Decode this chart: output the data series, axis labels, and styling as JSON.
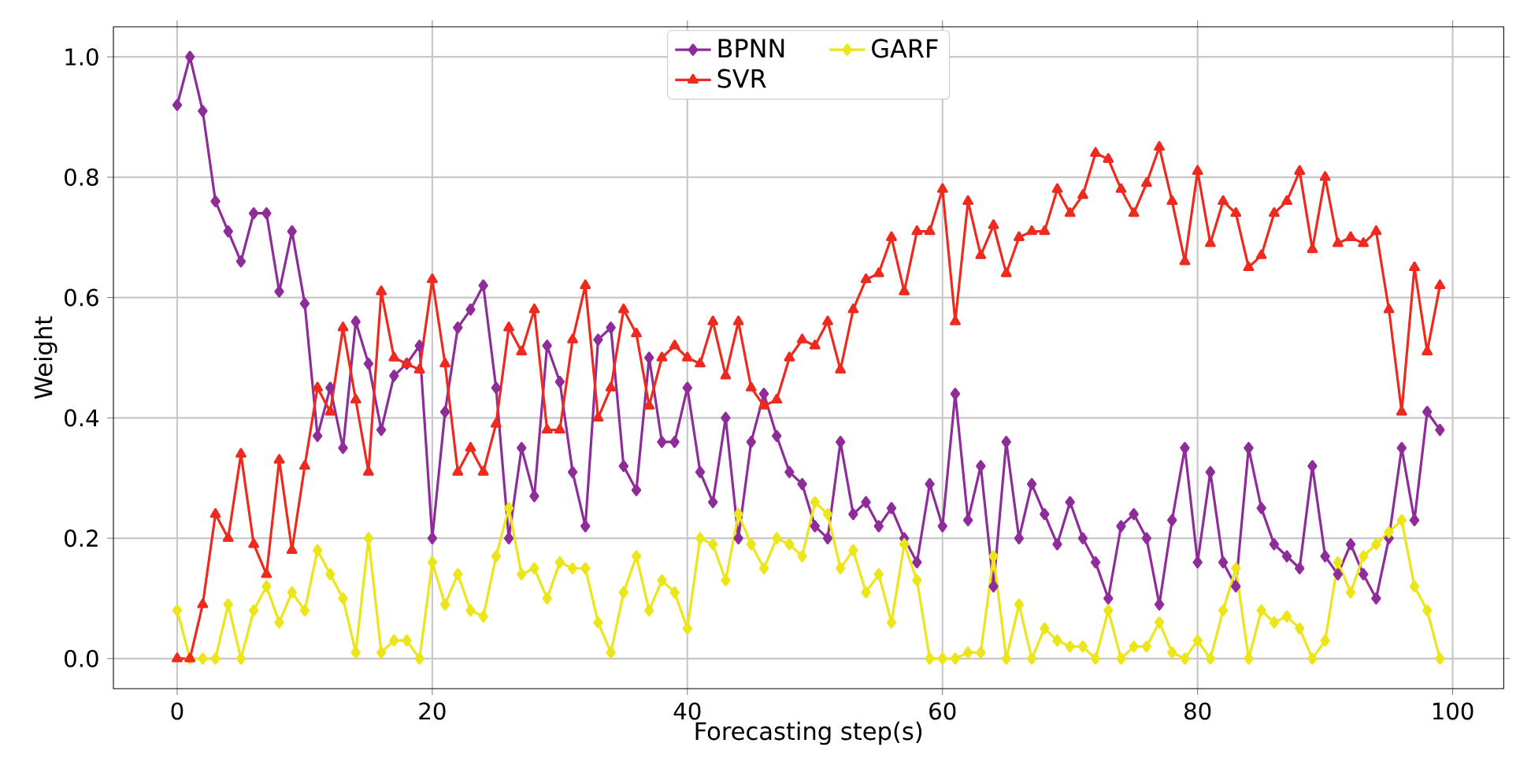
{
  "chart_data": {
    "type": "line",
    "xlabel": "Forecasting step(s)",
    "ylabel": "Weight",
    "x": [
      0,
      1,
      2,
      3,
      4,
      5,
      6,
      7,
      8,
      9,
      10,
      11,
      12,
      13,
      14,
      15,
      16,
      17,
      18,
      19,
      20,
      21,
      22,
      23,
      24,
      25,
      26,
      27,
      28,
      29,
      30,
      31,
      32,
      33,
      34,
      35,
      36,
      37,
      38,
      39,
      40,
      41,
      42,
      43,
      44,
      45,
      46,
      47,
      48,
      49,
      50,
      51,
      52,
      53,
      54,
      55,
      56,
      57,
      58,
      59,
      60,
      61,
      62,
      63,
      64,
      65,
      66,
      67,
      68,
      69,
      70,
      71,
      72,
      73,
      74,
      75,
      76,
      77,
      78,
      79,
      80,
      81,
      82,
      83,
      84,
      85,
      86,
      87,
      88,
      89,
      90,
      91,
      92,
      93,
      94,
      95,
      96,
      97,
      98,
      99
    ],
    "series": [
      {
        "name": "BPNN",
        "color": "#8e2c9a",
        "marker": "diamond",
        "values": [
          0.92,
          1.0,
          0.91,
          0.76,
          0.71,
          0.66,
          0.74,
          0.74,
          0.61,
          0.71,
          0.59,
          0.37,
          0.45,
          0.35,
          0.56,
          0.49,
          0.38,
          0.47,
          0.49,
          0.52,
          0.2,
          0.41,
          0.55,
          0.58,
          0.62,
          0.45,
          0.2,
          0.35,
          0.27,
          0.52,
          0.46,
          0.31,
          0.22,
          0.53,
          0.55,
          0.32,
          0.28,
          0.5,
          0.36,
          0.36,
          0.45,
          0.31,
          0.26,
          0.4,
          0.2,
          0.36,
          0.44,
          0.37,
          0.31,
          0.29,
          0.22,
          0.2,
          0.36,
          0.24,
          0.26,
          0.22,
          0.25,
          0.2,
          0.16,
          0.29,
          0.22,
          0.44,
          0.23,
          0.32,
          0.12,
          0.36,
          0.2,
          0.29,
          0.24,
          0.19,
          0.26,
          0.2,
          0.16,
          0.1,
          0.22,
          0.24,
          0.2,
          0.09,
          0.23,
          0.35,
          0.16,
          0.31,
          0.16,
          0.12,
          0.35,
          0.25,
          0.19,
          0.17,
          0.15,
          0.32,
          0.17,
          0.14,
          0.19,
          0.14,
          0.1,
          0.2,
          0.35,
          0.23,
          0.41,
          0.38
        ]
      },
      {
        "name": "GARF",
        "color": "#ece51a",
        "marker": "diamond",
        "values": [
          0.08,
          0,
          0,
          0,
          0.09,
          0,
          0.08,
          0.12,
          0.06,
          0.11,
          0.08,
          0.18,
          0.14,
          0.1,
          0.01,
          0.2,
          0.01,
          0.03,
          0.03,
          0,
          0.16,
          0.09,
          0.14,
          0.08,
          0.07,
          0.17,
          0.25,
          0.14,
          0.15,
          0.1,
          0.16,
          0.15,
          0.15,
          0.06,
          0.01,
          0.11,
          0.17,
          0.08,
          0.13,
          0.11,
          0.05,
          0.2,
          0.19,
          0.13,
          0.24,
          0.19,
          0.15,
          0.2,
          0.19,
          0.17,
          0.26,
          0.24,
          0.15,
          0.18,
          0.11,
          0.14,
          0.06,
          0.19,
          0.13,
          0,
          0,
          0,
          0.01,
          0.01,
          0.17,
          0,
          0.09,
          0,
          0.05,
          0.03,
          0.02,
          0.02,
          0,
          0.08,
          0,
          0.02,
          0.02,
          0.06,
          0.01,
          0,
          0.03,
          0,
          0.08,
          0.15,
          0,
          0.08,
          0.06,
          0.07,
          0.05,
          0,
          0.03,
          0.16,
          0.11,
          0.17,
          0.19,
          0.21,
          0.23,
          0.12,
          0.08,
          0
        ]
      },
      {
        "name": "SVR",
        "color": "#ee2a1e",
        "marker": "triangle",
        "values": [
          0,
          0,
          0.09,
          0.24,
          0.2,
          0.34,
          0.19,
          0.14,
          0.33,
          0.18,
          0.32,
          0.45,
          0.41,
          0.55,
          0.43,
          0.31,
          0.61,
          0.5,
          0.49,
          0.48,
          0.63,
          0.49,
          0.31,
          0.35,
          0.31,
          0.39,
          0.55,
          0.51,
          0.58,
          0.38,
          0.38,
          0.53,
          0.62,
          0.4,
          0.45,
          0.58,
          0.54,
          0.42,
          0.5,
          0.52,
          0.5,
          0.49,
          0.56,
          0.47,
          0.56,
          0.45,
          0.42,
          0.43,
          0.5,
          0.53,
          0.52,
          0.56,
          0.48,
          0.58,
          0.63,
          0.64,
          0.7,
          0.61,
          0.71,
          0.71,
          0.78,
          0.56,
          0.76,
          0.67,
          0.72,
          0.64,
          0.7,
          0.71,
          0.71,
          0.78,
          0.74,
          0.77,
          0.84,
          0.83,
          0.78,
          0.74,
          0.79,
          0.85,
          0.76,
          0.66,
          0.81,
          0.69,
          0.76,
          0.74,
          0.65,
          0.67,
          0.74,
          0.76,
          0.81,
          0.68,
          0.8,
          0.69,
          0.7,
          0.69,
          0.71,
          0.58,
          0.41,
          0.65,
          0.51,
          0.62
        ]
      }
    ],
    "xlim": [
      -5,
      104
    ],
    "ylim": [
      -0.05,
      1.05
    ],
    "xticks": [
      0,
      20,
      40,
      60,
      80,
      100
    ],
    "yticks": [
      {
        "value": 0,
        "label": "0.0"
      },
      {
        "value": 0.2,
        "label": "0.2"
      },
      {
        "value": 0.4,
        "label": "0.4"
      },
      {
        "value": 0.6,
        "label": "0.6"
      },
      {
        "value": 0.8,
        "label": "0.8"
      },
      {
        "value": 1.0,
        "label": "1.0"
      }
    ],
    "grid": true,
    "legend": "top",
    "line_style": "solid"
  }
}
